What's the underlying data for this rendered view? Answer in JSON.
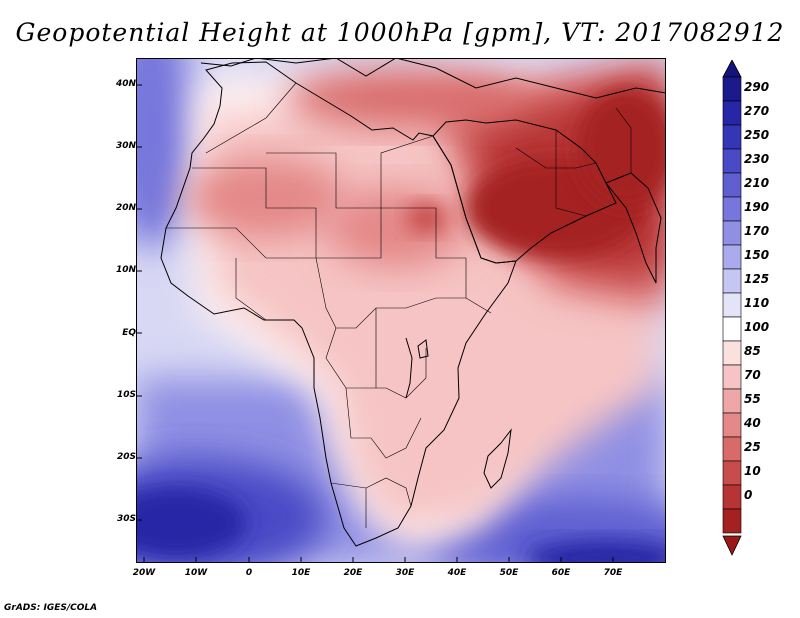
{
  "title": "Geopotential Height at 1000hPa [gpm], VT: 2017082912",
  "credit": "GrADS: IGES/COLA",
  "map": {
    "lat_labels": [
      "40N",
      "30N",
      "20N",
      "10N",
      "EQ",
      "10S",
      "20S",
      "30S"
    ],
    "lon_labels": [
      "20W",
      "10W",
      "0",
      "10E",
      "20E",
      "30E",
      "40E",
      "50E",
      "60E",
      "70E"
    ]
  },
  "colorbar": {
    "labels": [
      "290",
      "270",
      "250",
      "230",
      "210",
      "190",
      "170",
      "150",
      "125",
      "110",
      "100",
      "85",
      "70",
      "55",
      "40",
      "25",
      "10",
      "0"
    ],
    "colors": [
      "#1a1a8c",
      "#2626a6",
      "#3535b8",
      "#4a4ac6",
      "#5f5fd2",
      "#7676dc",
      "#8f8fe4",
      "#aaaaec",
      "#c6c6f2",
      "#e4e4f8",
      "#ffffff",
      "#fbe0e0",
      "#f6c4c4",
      "#eea6a6",
      "#e48888",
      "#d86a6a",
      "#c84c4c",
      "#b73434",
      "#a52020"
    ],
    "arrow_top_color": "#14147a",
    "arrow_bottom_color": "#9a1818"
  }
}
